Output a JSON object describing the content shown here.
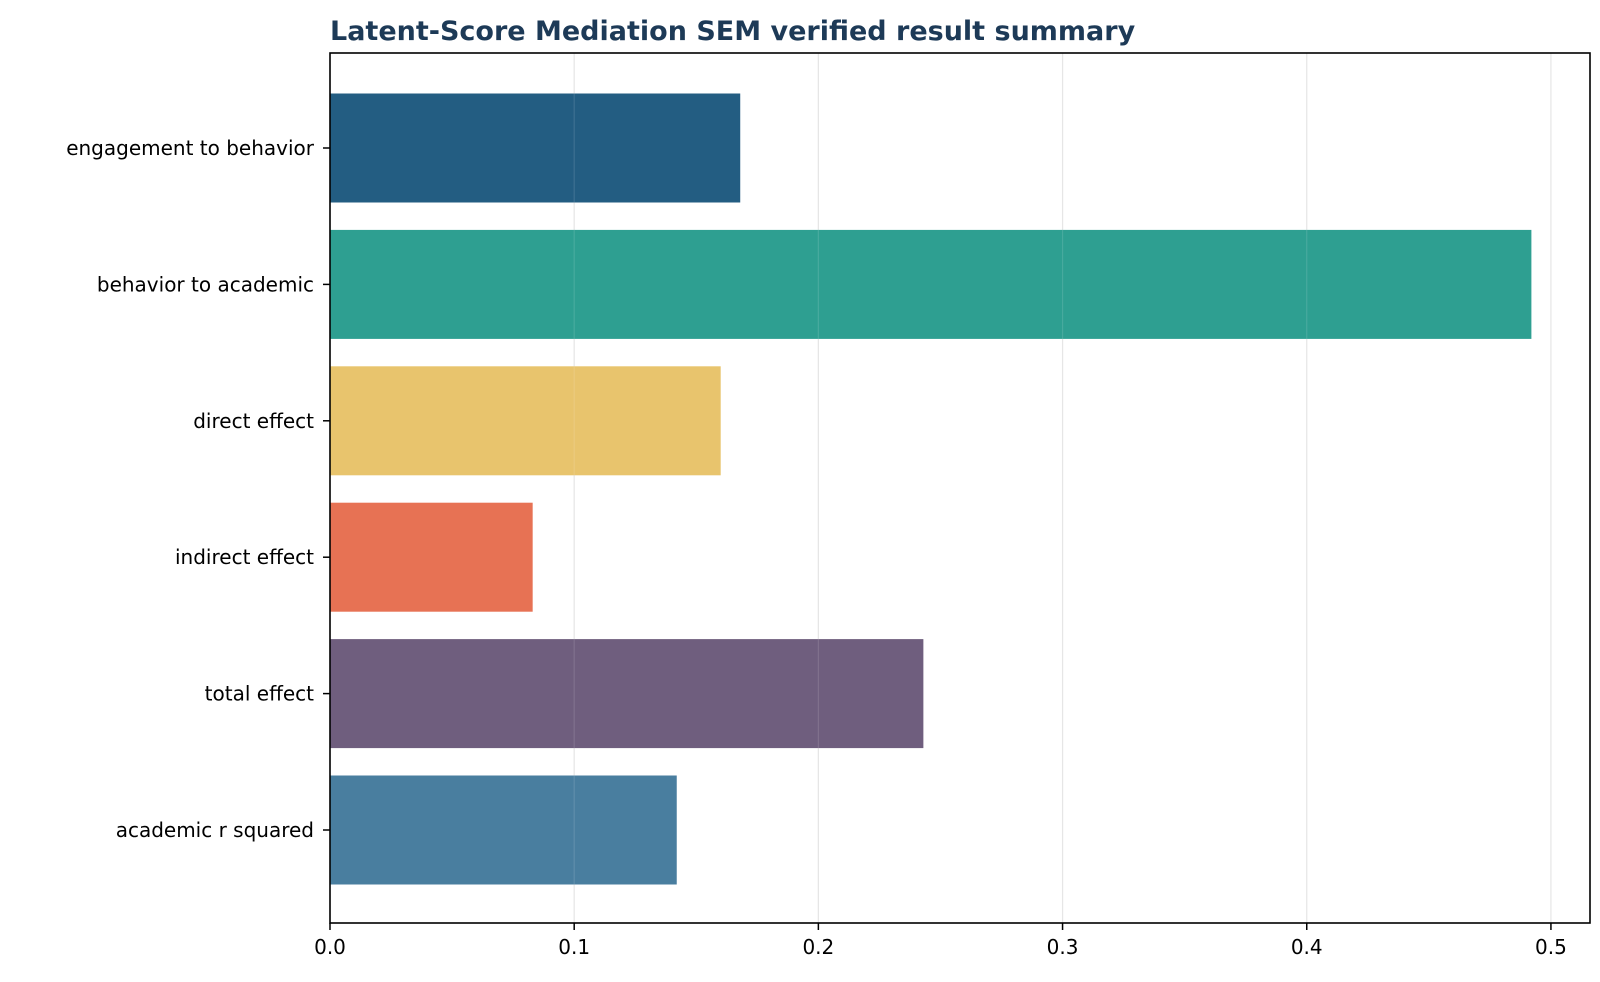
{
  "chart_data": {
    "type": "bar",
    "orientation": "horizontal",
    "title": "Latent-Score Mediation SEM verified result summary",
    "xlabel": "",
    "ylabel": "",
    "categories": [
      "engagement to behavior",
      "behavior to academic",
      "direct effect",
      "indirect effect",
      "total effect",
      "academic r squared"
    ],
    "values": [
      0.168,
      0.492,
      0.16,
      0.083,
      0.243,
      0.142
    ],
    "colors": [
      "#1f5a80",
      "#2a9d8f",
      "#e8c36a",
      "#e76f51",
      "#6c5b7b",
      "#457b9d"
    ],
    "xlim": [
      0,
      0.516
    ],
    "xticks": [
      0.0,
      0.1,
      0.2,
      0.3,
      0.4,
      0.5
    ],
    "xtick_labels": [
      "0.0",
      "0.1",
      "0.2",
      "0.3",
      "0.4",
      "0.5"
    ],
    "grid": "vertical",
    "title_color": "#1d3a57"
  }
}
